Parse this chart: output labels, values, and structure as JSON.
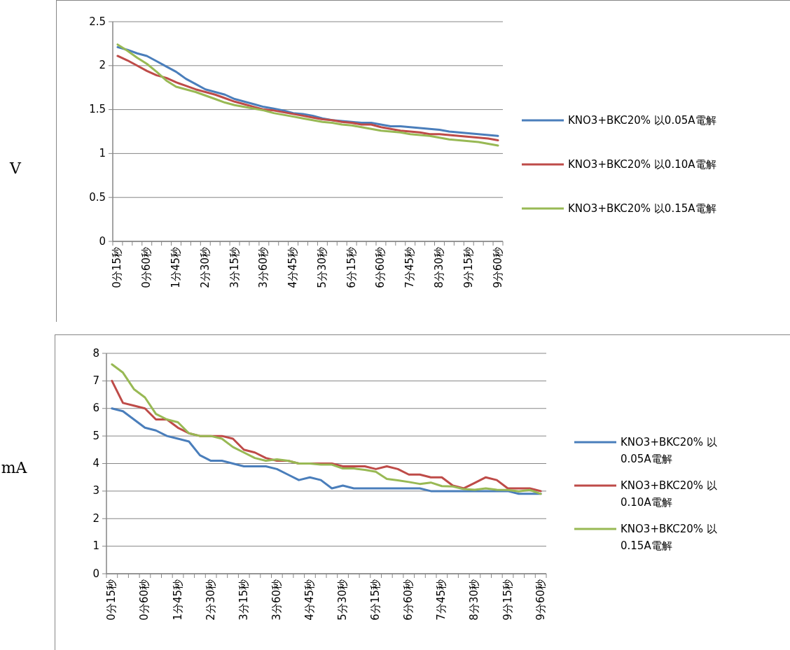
{
  "chart_data": [
    {
      "type": "line",
      "ylabel": "V",
      "categories": [
        "0分15秒",
        null,
        null,
        "0分60秒",
        null,
        null,
        "1分45秒",
        null,
        null,
        "2分30秒",
        null,
        null,
        "3分15秒",
        null,
        null,
        "3分60秒",
        null,
        null,
        "4分45秒",
        null,
        null,
        "5分30秒",
        null,
        null,
        "6分15秒",
        null,
        null,
        "6分60秒",
        null,
        null,
        "7分45秒",
        null,
        null,
        "8分30秒",
        null,
        null,
        "9分15秒",
        null,
        null,
        "9分60秒"
      ],
      "ylim": [
        0,
        2.5
      ],
      "yticks": [
        0,
        0.5,
        1,
        1.5,
        2,
        2.5
      ],
      "grid": "y",
      "legend": "right",
      "series": [
        {
          "name": "KNO3+BKC20% 以0.05A電解",
          "color": "#4a7ebb",
          "values": [
            2.21,
            2.18,
            2.14,
            2.11,
            2.05,
            1.99,
            1.93,
            1.85,
            1.79,
            1.73,
            1.7,
            1.67,
            1.62,
            1.59,
            1.56,
            1.53,
            1.51,
            1.49,
            1.46,
            1.45,
            1.43,
            1.4,
            1.38,
            1.37,
            1.36,
            1.35,
            1.35,
            1.33,
            1.31,
            1.31,
            1.3,
            1.29,
            1.28,
            1.27,
            1.25,
            1.24,
            1.23,
            1.22,
            1.21,
            1.2
          ]
        },
        {
          "name": "KNO3+BKC20% 以0.10A電解",
          "color": "#be4b48",
          "values": [
            2.11,
            2.06,
            2.0,
            1.94,
            1.89,
            1.86,
            1.81,
            1.77,
            1.73,
            1.7,
            1.67,
            1.63,
            1.59,
            1.56,
            1.53,
            1.5,
            1.49,
            1.47,
            1.45,
            1.43,
            1.41,
            1.39,
            1.38,
            1.36,
            1.35,
            1.33,
            1.33,
            1.3,
            1.28,
            1.26,
            1.25,
            1.24,
            1.22,
            1.22,
            1.21,
            1.2,
            1.19,
            1.18,
            1.17,
            1.15
          ]
        },
        {
          "name": "KNO3+BKC20% 以0.15A電解",
          "color": "#98b954",
          "values": [
            2.24,
            2.17,
            2.09,
            2.02,
            1.93,
            1.83,
            1.76,
            1.73,
            1.7,
            1.66,
            1.62,
            1.58,
            1.55,
            1.53,
            1.51,
            1.49,
            1.46,
            1.44,
            1.42,
            1.4,
            1.38,
            1.36,
            1.35,
            1.33,
            1.32,
            1.3,
            1.28,
            1.26,
            1.25,
            1.24,
            1.22,
            1.21,
            1.2,
            1.18,
            1.16,
            1.15,
            1.14,
            1.13,
            1.11,
            1.09
          ]
        }
      ]
    },
    {
      "type": "line",
      "ylabel": "mA",
      "categories": [
        "0分15秒",
        null,
        null,
        "0分60秒",
        null,
        null,
        "1分45秒",
        null,
        null,
        "2分30秒",
        null,
        null,
        "3分15秒",
        null,
        null,
        "3分60秒",
        null,
        null,
        "4分45秒",
        null,
        null,
        "5分30秒",
        null,
        null,
        "6分15秒",
        null,
        null,
        "6分60秒",
        null,
        null,
        "7分45秒",
        null,
        null,
        "8分30秒",
        null,
        null,
        "9分15秒",
        null,
        null,
        "9分60秒"
      ],
      "ylim": [
        0,
        8
      ],
      "yticks": [
        0,
        1,
        2,
        3,
        4,
        5,
        6,
        7,
        8
      ],
      "grid": "y",
      "legend": "right",
      "series": [
        {
          "name": "KNO3+BKC20% 以0.05A電解",
          "color": "#4a7ebb",
          "values": [
            6.0,
            5.9,
            5.6,
            5.3,
            5.2,
            5.0,
            4.9,
            4.8,
            4.3,
            4.1,
            4.1,
            4.0,
            3.9,
            3.9,
            3.9,
            3.8,
            3.6,
            3.4,
            3.5,
            3.4,
            3.1,
            3.2,
            3.1,
            3.1,
            3.1,
            3.1,
            3.1,
            3.1,
            3.1,
            3.0,
            3.0,
            3.0,
            3.0,
            3.0,
            3.0,
            3.0,
            3.0,
            2.9,
            2.9,
            2.9
          ]
        },
        {
          "name": "KNO3+BKC20% 以0.10A電解",
          "color": "#be4b48",
          "values": [
            7.0,
            6.2,
            6.1,
            6.0,
            5.6,
            5.6,
            5.3,
            5.1,
            5.0,
            5.0,
            5.0,
            4.9,
            4.5,
            4.4,
            4.2,
            4.1,
            4.1,
            4.0,
            4.0,
            4.0,
            4.0,
            3.9,
            3.9,
            3.9,
            3.8,
            3.9,
            3.8,
            3.6,
            3.6,
            3.5,
            3.5,
            3.2,
            3.1,
            3.3,
            3.5,
            3.4,
            3.1,
            3.1,
            3.1,
            3.0
          ]
        },
        {
          "name": "KNO3+BKC20% 以0.15A電解",
          "color": "#98b954",
          "values": [
            7.6,
            7.3,
            6.7,
            6.4,
            5.8,
            5.6,
            5.5,
            5.1,
            5.0,
            5.0,
            4.9,
            4.6,
            4.4,
            4.2,
            4.1,
            4.15,
            4.1,
            4.0,
            4.0,
            3.96,
            3.96,
            3.82,
            3.82,
            3.77,
            3.7,
            3.44,
            3.39,
            3.33,
            3.26,
            3.31,
            3.18,
            3.17,
            3.07,
            3.05,
            3.1,
            3.05,
            3.04,
            2.99,
            3.04,
            2.9
          ]
        }
      ]
    }
  ]
}
